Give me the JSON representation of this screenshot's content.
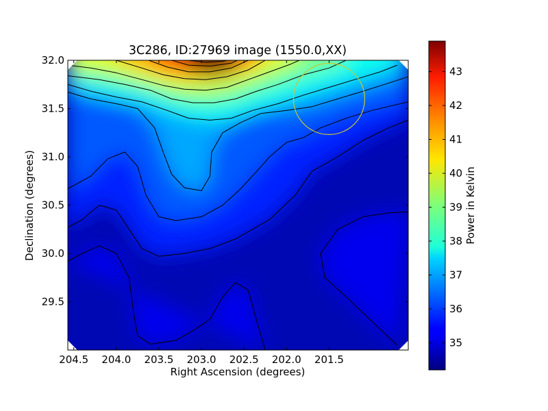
{
  "chart_data": {
    "type": "heatmap",
    "title": "3C286, ID:27969 image (1550.0,XX)",
    "xlabel": "Right Ascension (degrees)",
    "ylabel": "Declination (degrees)",
    "xlim": [
      204.57,
      200.57
    ],
    "ylim": [
      29.0,
      32.0
    ],
    "x_inverted": true,
    "x_ticks": [
      204.5,
      204.0,
      203.5,
      203.0,
      202.5,
      202.0,
      201.5
    ],
    "x_tick_labels": [
      "204.5",
      "204.0",
      "203.5",
      "203.0",
      "202.5",
      "202.0",
      "201.5"
    ],
    "y_ticks": [
      32.0,
      31.5,
      31.0,
      30.5,
      30.0,
      29.5
    ],
    "y_tick_labels": [
      "32.0",
      "31.5",
      "31.0",
      "30.5",
      "30.0",
      "29.5"
    ],
    "colorbar": {
      "label": "Power in Kelvin",
      "range": [
        34.2,
        43.9
      ],
      "colormap": "jet",
      "ticks": [
        35,
        36,
        37,
        38,
        39,
        40,
        41,
        42,
        43
      ],
      "tick_labels": [
        "35",
        "36",
        "37",
        "38",
        "39",
        "40",
        "41",
        "42",
        "43"
      ]
    },
    "peak": {
      "x": 202.87,
      "y": 32.0,
      "value": 43.9
    },
    "field_center": {
      "x": 201.5,
      "y": 31.6
    },
    "overlay_circle_color": "#c8c832",
    "contour_color": "#000000",
    "grid": false,
    "contours": [
      {
        "level": 35.0,
        "points": [
          [
            204.57,
            29.92
          ],
          [
            204.4,
            30.0
          ],
          [
            204.2,
            30.08
          ],
          [
            204.0,
            30.0
          ],
          [
            203.85,
            29.75
          ],
          [
            203.8,
            29.4
          ],
          [
            203.75,
            29.15
          ],
          [
            203.6,
            29.06
          ],
          [
            203.3,
            29.1
          ],
          [
            203.1,
            29.2
          ],
          [
            202.9,
            29.32
          ],
          [
            202.75,
            29.55
          ],
          [
            202.6,
            29.7
          ],
          [
            202.45,
            29.62
          ],
          [
            202.35,
            29.3
          ],
          [
            202.25,
            29.0
          ]
        ]
      },
      {
        "level": 35.0,
        "points": [
          [
            200.57,
            30.43
          ],
          [
            200.8,
            30.42
          ],
          [
            201.1,
            30.38
          ],
          [
            201.4,
            30.25
          ],
          [
            201.6,
            30.0
          ],
          [
            201.55,
            29.75
          ],
          [
            201.3,
            29.55
          ],
          [
            201.0,
            29.3
          ],
          [
            200.7,
            29.05
          ]
        ]
      },
      {
        "level": 35.5,
        "points": [
          [
            204.57,
            30.27
          ],
          [
            204.4,
            30.35
          ],
          [
            204.2,
            30.5
          ],
          [
            204.0,
            30.45
          ],
          [
            203.85,
            30.25
          ],
          [
            203.7,
            30.05
          ],
          [
            203.5,
            29.97
          ],
          [
            203.2,
            30.0
          ],
          [
            202.9,
            30.05
          ],
          [
            202.6,
            30.15
          ],
          [
            202.2,
            30.35
          ],
          [
            201.9,
            30.6
          ],
          [
            201.7,
            30.85
          ],
          [
            201.4,
            31.0
          ],
          [
            201.1,
            31.17
          ],
          [
            200.8,
            31.3
          ],
          [
            200.57,
            31.38
          ]
        ]
      },
      {
        "level": 36.0,
        "points": [
          [
            204.57,
            30.67
          ],
          [
            204.3,
            30.8
          ],
          [
            204.1,
            30.98
          ],
          [
            203.9,
            31.05
          ],
          [
            203.75,
            30.9
          ],
          [
            203.65,
            30.6
          ],
          [
            203.5,
            30.38
          ],
          [
            203.3,
            30.34
          ],
          [
            203.0,
            30.38
          ],
          [
            202.75,
            30.5
          ],
          [
            202.55,
            30.66
          ],
          [
            202.35,
            30.85
          ],
          [
            202.2,
            31.0
          ],
          [
            202.0,
            31.15
          ],
          [
            201.8,
            31.2
          ],
          [
            201.6,
            31.3
          ],
          [
            201.3,
            31.4
          ],
          [
            201.0,
            31.48
          ],
          [
            200.57,
            31.57
          ]
        ]
      },
      {
        "level": 36.5,
        "points": [
          [
            204.57,
            31.67
          ],
          [
            204.3,
            31.6
          ],
          [
            204.0,
            31.55
          ],
          [
            203.75,
            31.5
          ],
          [
            203.55,
            31.3
          ],
          [
            203.45,
            31.05
          ],
          [
            203.35,
            30.82
          ],
          [
            203.2,
            30.68
          ],
          [
            203.0,
            30.65
          ],
          [
            202.9,
            30.8
          ],
          [
            202.88,
            31.05
          ],
          [
            202.75,
            31.25
          ],
          [
            202.55,
            31.35
          ],
          [
            202.3,
            31.45
          ],
          [
            202.0,
            31.48
          ],
          [
            201.7,
            31.52
          ],
          [
            201.4,
            31.6
          ],
          [
            201.1,
            31.68
          ],
          [
            200.85,
            31.75
          ],
          [
            200.57,
            31.83
          ]
        ]
      },
      {
        "level": 37.5,
        "points": [
          [
            204.57,
            31.75
          ],
          [
            204.3,
            31.68
          ],
          [
            204.0,
            31.62
          ],
          [
            203.7,
            31.57
          ],
          [
            203.4,
            31.48
          ],
          [
            203.15,
            31.4
          ],
          [
            202.9,
            31.38
          ],
          [
            202.65,
            31.4
          ],
          [
            202.4,
            31.48
          ],
          [
            202.1,
            31.55
          ],
          [
            201.8,
            31.64
          ],
          [
            201.5,
            31.72
          ],
          [
            201.2,
            31.8
          ],
          [
            200.9,
            31.88
          ],
          [
            200.7,
            31.95
          ]
        ]
      },
      {
        "level": 38.5,
        "points": [
          [
            204.57,
            31.84
          ],
          [
            204.2,
            31.8
          ],
          [
            203.9,
            31.75
          ],
          [
            203.6,
            31.69
          ],
          [
            203.35,
            31.6
          ],
          [
            203.1,
            31.56
          ],
          [
            202.85,
            31.56
          ],
          [
            202.6,
            31.6
          ],
          [
            202.35,
            31.68
          ],
          [
            202.1,
            31.75
          ],
          [
            201.8,
            31.85
          ],
          [
            201.5,
            31.92
          ],
          [
            201.3,
            32.0
          ]
        ]
      },
      {
        "level": 39.5,
        "points": [
          [
            204.57,
            31.95
          ],
          [
            204.3,
            31.92
          ],
          [
            204.0,
            31.87
          ],
          [
            203.7,
            31.8
          ],
          [
            203.45,
            31.74
          ],
          [
            203.2,
            31.7
          ],
          [
            202.95,
            31.69
          ],
          [
            202.7,
            31.72
          ],
          [
            202.45,
            31.8
          ],
          [
            202.2,
            31.88
          ],
          [
            201.95,
            31.96
          ],
          [
            201.85,
            32.0
          ]
        ]
      },
      {
        "level": 40.5,
        "points": [
          [
            204.0,
            32.0
          ],
          [
            203.7,
            31.92
          ],
          [
            203.45,
            31.85
          ],
          [
            203.2,
            31.81
          ],
          [
            202.95,
            31.8
          ],
          [
            202.7,
            31.83
          ],
          [
            202.45,
            31.9
          ],
          [
            202.25,
            32.0
          ]
        ]
      },
      {
        "level": 41.5,
        "points": [
          [
            203.62,
            32.0
          ],
          [
            203.4,
            31.93
          ],
          [
            203.15,
            31.88
          ],
          [
            202.9,
            31.88
          ],
          [
            202.65,
            31.92
          ],
          [
            202.45,
            32.0
          ]
        ]
      },
      {
        "level": 42.5,
        "points": [
          [
            203.35,
            32.0
          ],
          [
            203.15,
            31.95
          ],
          [
            202.9,
            31.94
          ],
          [
            202.65,
            31.97
          ],
          [
            202.58,
            32.0
          ]
        ]
      },
      {
        "level": 43.3,
        "points": [
          [
            203.15,
            32.0
          ],
          [
            202.95,
            31.98
          ],
          [
            202.75,
            31.99
          ],
          [
            202.7,
            32.0
          ]
        ]
      }
    ]
  }
}
